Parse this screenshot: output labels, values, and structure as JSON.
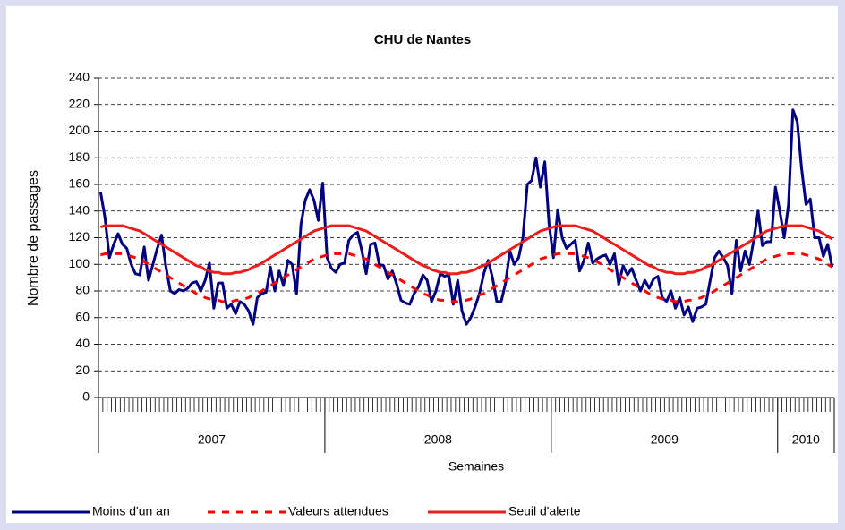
{
  "chart_data": {
    "type": "line",
    "title": "CHU de Nantes",
    "y_label": "Nombre de passages",
    "x_label": "Semaines",
    "ylim": [
      0,
      240
    ],
    "yticks": [
      0,
      20,
      40,
      60,
      80,
      100,
      120,
      140,
      160,
      180,
      200,
      220,
      240
    ],
    "grid": true,
    "legend": "bottom",
    "year_groups": [
      {
        "label": "2007",
        "weeks": 52
      },
      {
        "label": "2008",
        "weeks": 52
      },
      {
        "label": "2009",
        "weeks": 52
      },
      {
        "label": "2010",
        "weeks": 13
      }
    ],
    "series": [
      {
        "name": "Moins d'un an",
        "color": "#000080",
        "dash": false,
        "values": [
          154,
          135,
          105,
          115,
          123,
          115,
          112,
          100,
          93,
          92,
          113,
          88,
          100,
          112,
          122,
          98,
          80,
          78,
          81,
          80,
          82,
          86,
          87,
          80,
          88,
          101,
          67,
          86,
          86,
          67,
          70,
          63,
          72,
          70,
          65,
          55,
          75,
          78,
          79,
          98,
          80,
          95,
          84,
          103,
          100,
          78,
          130,
          148,
          156,
          148,
          133,
          161,
          105,
          97,
          94,
          100,
          101,
          118,
          122,
          124,
          110,
          93,
          115,
          116,
          100,
          99,
          89,
          95,
          85,
          73,
          71,
          70,
          78,
          83,
          92,
          88,
          72,
          80,
          93,
          91,
          92,
          70,
          88,
          65,
          55,
          60,
          68,
          78,
          93,
          103,
          90,
          72,
          72,
          86,
          110,
          100,
          105,
          120,
          160,
          163,
          180,
          158,
          177,
          130,
          105,
          141,
          120,
          112,
          115,
          118,
          95,
          103,
          116,
          101,
          104,
          106,
          107,
          100,
          108,
          85,
          99,
          92,
          97,
          88,
          80,
          88,
          82,
          89,
          91,
          75,
          72,
          80,
          67,
          75,
          62,
          68,
          57,
          67,
          68,
          70,
          88,
          105,
          110,
          105,
          99,
          78,
          118,
          95,
          110,
          100,
          118,
          140,
          114,
          117,
          117,
          158,
          140,
          120,
          145,
          216,
          207,
          172,
          145,
          149,
          120,
          120,
          106,
          115,
          98
        ]
      },
      {
        "name": "Valeurs attendues",
        "color": "#ff0000",
        "dash": true,
        "values": [
          107,
          108,
          108,
          108,
          108,
          108,
          107,
          106,
          105,
          104,
          102,
          100,
          98,
          96,
          94,
          92,
          90,
          88,
          86,
          84,
          82,
          80,
          78,
          77,
          75,
          74,
          73,
          73,
          72,
          72,
          72,
          73,
          73,
          74,
          75,
          77,
          78,
          80,
          82,
          84,
          86,
          88,
          90,
          92,
          94,
          96,
          98,
          100,
          102,
          104,
          105,
          106,
          107,
          108,
          108,
          108,
          108,
          108,
          107,
          106,
          105,
          104,
          102,
          100,
          98,
          96,
          94,
          92,
          90,
          88,
          86,
          84,
          82,
          80,
          78,
          77,
          75,
          74,
          73,
          73,
          72,
          72,
          72,
          73,
          73,
          74,
          75,
          77,
          78,
          80,
          82,
          84,
          86,
          88,
          90,
          92,
          94,
          96,
          98,
          100,
          102,
          104,
          105,
          106,
          107,
          108,
          108,
          108,
          108,
          108,
          107,
          106,
          105,
          104,
          102,
          100,
          98,
          96,
          94,
          92,
          90,
          88,
          86,
          84,
          82,
          80,
          78,
          77,
          75,
          74,
          73,
          73,
          72,
          72,
          72,
          73,
          73,
          74,
          75,
          77,
          78,
          80,
          82,
          84,
          86,
          88,
          90,
          92,
          94,
          96,
          98,
          100,
          102,
          104,
          105,
          106,
          107,
          108,
          108,
          108,
          108,
          108,
          107,
          106,
          105,
          104,
          102,
          100,
          98
        ]
      },
      {
        "name": "Seuil d'alerte",
        "color": "#ee1c1c",
        "dash": false,
        "values": [
          128,
          129,
          129,
          129,
          129,
          129,
          128,
          127,
          126,
          125,
          123,
          121,
          119,
          117,
          115,
          113,
          111,
          109,
          107,
          105,
          103,
          101,
          99,
          98,
          96,
          95,
          94,
          94,
          93,
          93,
          93,
          94,
          94,
          95,
          96,
          98,
          99,
          101,
          103,
          105,
          107,
          109,
          111,
          113,
          115,
          117,
          119,
          121,
          123,
          125,
          126,
          127,
          128,
          129,
          129,
          129,
          129,
          129,
          128,
          127,
          126,
          125,
          123,
          121,
          119,
          117,
          115,
          113,
          111,
          109,
          107,
          105,
          103,
          101,
          99,
          98,
          96,
          95,
          94,
          94,
          93,
          93,
          93,
          94,
          94,
          95,
          96,
          98,
          99,
          101,
          103,
          105,
          107,
          109,
          111,
          113,
          115,
          117,
          119,
          121,
          123,
          125,
          126,
          127,
          128,
          129,
          129,
          129,
          129,
          129,
          128,
          127,
          126,
          125,
          123,
          121,
          119,
          117,
          115,
          113,
          111,
          109,
          107,
          105,
          103,
          101,
          99,
          98,
          96,
          95,
          94,
          94,
          93,
          93,
          93,
          94,
          94,
          95,
          96,
          98,
          99,
          101,
          103,
          105,
          107,
          109,
          111,
          113,
          115,
          117,
          119,
          121,
          123,
          125,
          126,
          127,
          128,
          129,
          129,
          129,
          129,
          129,
          128,
          127,
          126,
          125,
          123,
          121,
          119
        ]
      }
    ]
  }
}
